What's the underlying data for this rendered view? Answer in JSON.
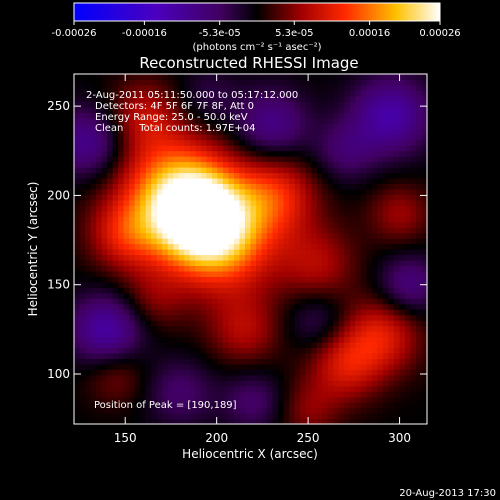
{
  "chart_data": {
    "type": "heatmap",
    "title": "Reconstructed RHESSI Image",
    "xlabel": "Heliocentric X (arcsec)",
    "ylabel": "Heliocentric Y (arcsec)",
    "xlim": [
      122,
      315
    ],
    "ylim": [
      72,
      268
    ],
    "x_ticks": [
      150,
      200,
      250,
      300
    ],
    "y_ticks": [
      100,
      150,
      200,
      250
    ],
    "grid": false,
    "colorbar": {
      "range": [
        -0.00026,
        0.00026
      ],
      "tick_values": [
        -0.00026,
        -0.00016,
        -5.3e-05,
        5.3e-05,
        0.00016,
        0.00026
      ],
      "tick_labels": [
        "-0.00026",
        "-0.00016",
        "-5.3e-05",
        "5.3e-05",
        "0.00016",
        "0.00026"
      ],
      "unit_label": "(photons cm⁻² s⁻¹ asec⁻²)"
    },
    "annotations": [
      "2-Aug-2011 05:11:50.000 to 05:17:12.000",
      "Detectors: 4F 5F 6F 7F 8F, Att 0",
      "Energy Range: 25.0 - 50.0 keV",
      "Clean     Total counts: 1.97E+04"
    ],
    "peak": {
      "label": "Position of Peak = [190,189]",
      "x": 190,
      "y": 189,
      "value": 0.00026
    },
    "sources": [
      {
        "x": 190,
        "y": 189,
        "value": 0.00026,
        "sigma": 18
      },
      {
        "x": 175,
        "y": 205,
        "value": 0.00014,
        "sigma": 22
      },
      {
        "x": 205,
        "y": 172,
        "value": 0.00013,
        "sigma": 20
      },
      {
        "x": 232,
        "y": 200,
        "value": 0.00011,
        "sigma": 16
      },
      {
        "x": 150,
        "y": 178,
        "value": 9e-05,
        "sigma": 14
      },
      {
        "x": 160,
        "y": 245,
        "value": 7e-05,
        "sigma": 14
      },
      {
        "x": 255,
        "y": 162,
        "value": 7e-05,
        "sigma": 15
      },
      {
        "x": 290,
        "y": 122,
        "value": 0.0001,
        "sigma": 15
      },
      {
        "x": 270,
        "y": 105,
        "value": 9e-05,
        "sigma": 14
      },
      {
        "x": 300,
        "y": 190,
        "value": 6e-05,
        "sigma": 12
      },
      {
        "x": 215,
        "y": 125,
        "value": 7e-05,
        "sigma": 14
      },
      {
        "x": 250,
        "y": 80,
        "value": 5e-05,
        "sigma": 12
      },
      {
        "x": 145,
        "y": 100,
        "value": 5e-05,
        "sigma": 12
      },
      {
        "x": 165,
        "y": 142,
        "value": 5e-05,
        "sigma": 13
      },
      {
        "x": 130,
        "y": 230,
        "value": -0.0001,
        "sigma": 14
      },
      {
        "x": 140,
        "y": 125,
        "value": -0.00012,
        "sigma": 14
      },
      {
        "x": 230,
        "y": 240,
        "value": -9e-05,
        "sigma": 14
      },
      {
        "x": 295,
        "y": 245,
        "value": -0.00012,
        "sigma": 15
      },
      {
        "x": 305,
        "y": 150,
        "value": -8e-05,
        "sigma": 12
      },
      {
        "x": 255,
        "y": 130,
        "value": -5e-05,
        "sigma": 12
      },
      {
        "x": 180,
        "y": 90,
        "value": -6e-05,
        "sigma": 13
      },
      {
        "x": 220,
        "y": 85,
        "value": -6e-05,
        "sigma": 12
      },
      {
        "x": 270,
        "y": 225,
        "value": -6e-05,
        "sigma": 12
      },
      {
        "x": 195,
        "y": 255,
        "value": -4e-05,
        "sigma": 12
      }
    ]
  },
  "footer": {
    "timestamp": "20-Aug-2013 17:30"
  }
}
